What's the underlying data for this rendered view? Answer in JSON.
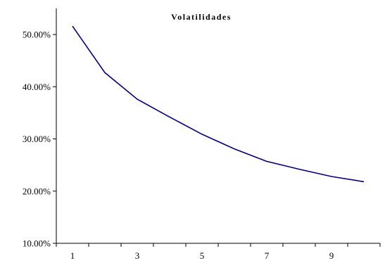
{
  "chart_data": {
    "type": "line",
    "title": "Volatilidades",
    "xlabel": "",
    "ylabel": "",
    "x": [
      1,
      2,
      3,
      4,
      5,
      6,
      7,
      8,
      9,
      10
    ],
    "x_tick_labels": [
      "1",
      "3",
      "5",
      "7",
      "9"
    ],
    "y_tick_labels": [
      "10.00%",
      "20.00%",
      "30.00%",
      "40.00%",
      "50.00%"
    ],
    "ylim": [
      0.1,
      0.55
    ],
    "xlim": [
      0.5,
      10.5
    ],
    "grid": false,
    "series": [
      {
        "values": [
          0.516,
          0.427,
          0.376,
          0.342,
          0.309,
          0.281,
          0.257,
          0.242,
          0.228,
          0.218
        ],
        "color": "#000080"
      }
    ]
  }
}
